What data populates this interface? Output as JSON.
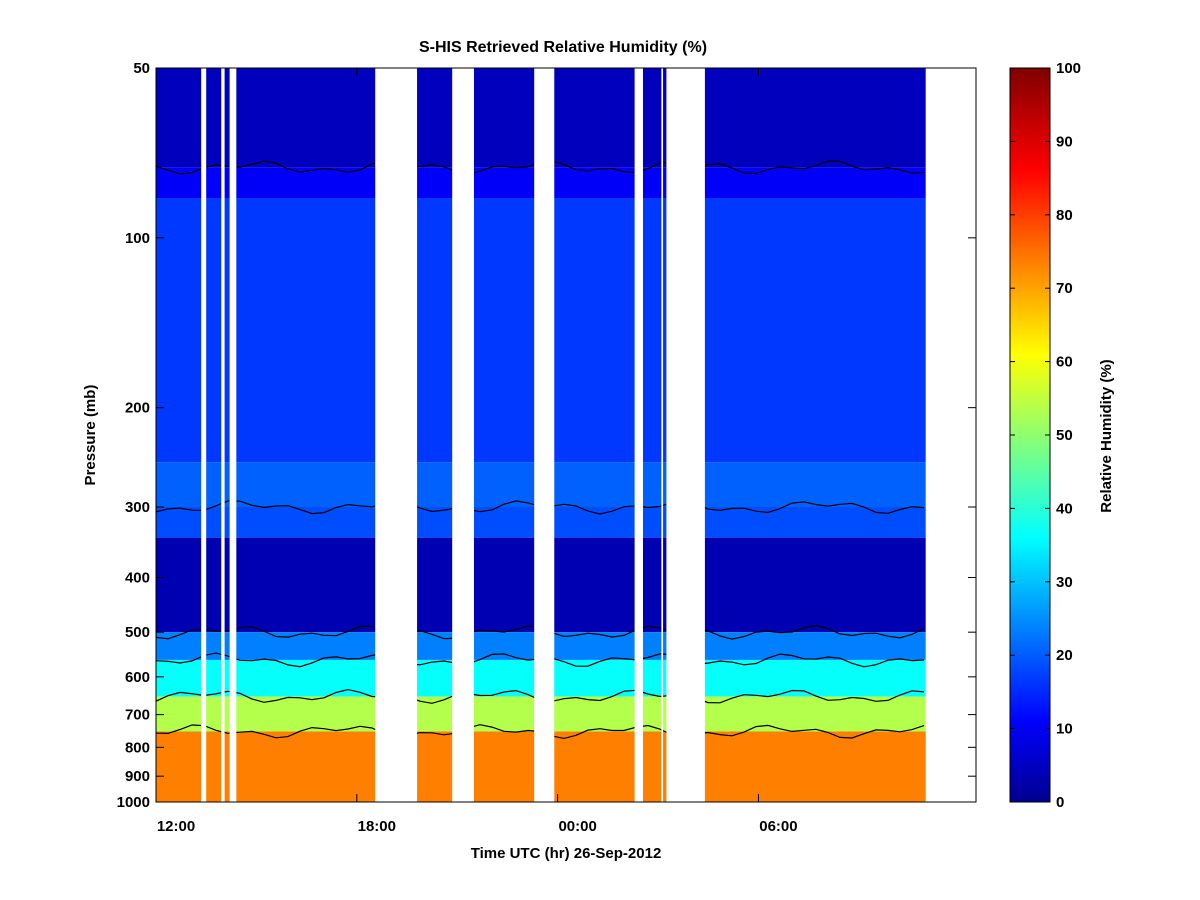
{
  "chart_data": {
    "type": "heatmap",
    "title": "S-HIS Retrieved Relative Humidity (%)",
    "xlabel": "Time UTC (hr) 26-Sep-2012",
    "ylabel": "Pressure (mb)",
    "colorbar_label": "Relative Humidity (%)",
    "x_ticks": [
      {
        "hour": 12,
        "label": "12:00"
      },
      {
        "hour": 18,
        "label": "18:00"
      },
      {
        "hour": 24,
        "label": "00:00"
      },
      {
        "hour": 30,
        "label": "06:00"
      }
    ],
    "xlim_hours": [
      12,
      36.5
    ],
    "y_scale": "log",
    "ylim": [
      50,
      1000
    ],
    "y_reversed": true,
    "y_ticks": [
      50,
      100,
      200,
      300,
      400,
      500,
      600,
      700,
      800,
      900,
      1000
    ],
    "colorbar_range": [
      0,
      100
    ],
    "colorbar_ticks": [
      0,
      10,
      20,
      30,
      40,
      50,
      60,
      70,
      80,
      90,
      100
    ],
    "colormap": "jet",
    "contour_color": "#000000",
    "no_data_color": "#ffffff",
    "data_gaps_hours": [
      [
        13.35,
        13.5
      ],
      [
        13.95,
        14.05
      ],
      [
        14.2,
        14.4
      ],
      [
        18.55,
        19.8
      ],
      [
        20.85,
        21.5
      ],
      [
        23.3,
        23.9
      ],
      [
        26.3,
        26.55
      ],
      [
        27.1,
        27.15
      ],
      [
        27.25,
        28.4
      ],
      [
        35.0,
        36.5
      ]
    ],
    "profile_segments": [
      {
        "p_top": 50,
        "p_bottom": 75,
        "rh": 6
      },
      {
        "p_top": 75,
        "p_bottom": 85,
        "rh": 12
      },
      {
        "p_top": 85,
        "p_bottom": 250,
        "rh": 18
      },
      {
        "p_top": 250,
        "p_bottom": 300,
        "rh": 22
      },
      {
        "p_top": 300,
        "p_bottom": 340,
        "rh": 20
      },
      {
        "p_top": 340,
        "p_bottom": 500,
        "rh": 5
      },
      {
        "p_top": 500,
        "p_bottom": 560,
        "rh": 25
      },
      {
        "p_top": 560,
        "p_bottom": 650,
        "rh": 38
      },
      {
        "p_top": 650,
        "p_bottom": 750,
        "rh": 55
      },
      {
        "p_top": 750,
        "p_bottom": 1000,
        "rh": 75
      }
    ]
  }
}
